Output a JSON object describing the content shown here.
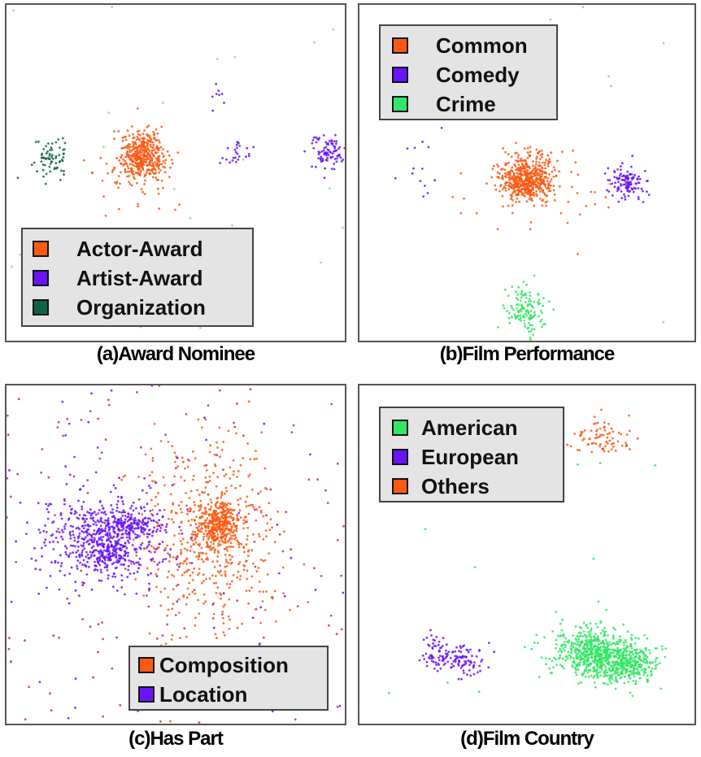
{
  "chart_data": [
    {
      "type": "scatter",
      "title": "(a)Award Nominee",
      "legend_position": "bottom-left",
      "series": [
        {
          "name": "Actor-Award",
          "color": "#fa5a14",
          "clusters": [
            {
              "cx": 0.4,
              "cy": 0.45,
              "sx": 0.035,
              "sy": 0.035,
              "n": 420
            },
            {
              "cx": 0.38,
              "cy": 0.52,
              "sx": 0.06,
              "sy": 0.05,
              "n": 50
            }
          ]
        },
        {
          "name": "Artist-Award",
          "color": "#6a14fa",
          "clusters": [
            {
              "cx": 0.95,
              "cy": 0.44,
              "sx": 0.025,
              "sy": 0.025,
              "n": 90
            },
            {
              "cx": 0.68,
              "cy": 0.44,
              "sx": 0.025,
              "sy": 0.02,
              "n": 25
            },
            {
              "cx": 0.64,
              "cy": 0.27,
              "sx": 0.02,
              "sy": 0.015,
              "n": 8
            }
          ]
        },
        {
          "name": "Organization",
          "color": "#0f6446",
          "clusters": [
            {
              "cx": 0.13,
              "cy": 0.46,
              "sx": 0.025,
              "sy": 0.025,
              "n": 70
            }
          ]
        }
      ],
      "noise": [
        {
          "color": "#7ee28a",
          "n": 25
        }
      ]
    },
    {
      "type": "scatter",
      "title": "(b)Film Performance",
      "legend_position": "top-left",
      "series": [
        {
          "name": "Common",
          "color": "#fa5a14",
          "clusters": [
            {
              "cx": 0.5,
              "cy": 0.52,
              "sx": 0.04,
              "sy": 0.035,
              "n": 520
            },
            {
              "cx": 0.55,
              "cy": 0.55,
              "sx": 0.12,
              "sy": 0.06,
              "n": 60
            }
          ]
        },
        {
          "name": "Comedy",
          "color": "#6a14fa",
          "clusters": [
            {
              "cx": 0.8,
              "cy": 0.53,
              "sx": 0.025,
              "sy": 0.025,
              "n": 120
            },
            {
              "cx": 0.17,
              "cy": 0.5,
              "sx": 0.03,
              "sy": 0.06,
              "n": 14
            }
          ]
        },
        {
          "name": "Crime",
          "color": "#32e664",
          "clusters": [
            {
              "cx": 0.5,
              "cy": 0.91,
              "sx": 0.03,
              "sy": 0.035,
              "n": 130
            }
          ]
        }
      ],
      "noise": [
        {
          "color": "#c8b478",
          "n": 8
        }
      ]
    },
    {
      "type": "scatter",
      "title": "(c)Has Part",
      "legend_position": "bottom-right",
      "series": [
        {
          "name": "Composition",
          "color": "#fa5a14",
          "clusters": [
            {
              "cx": 0.63,
              "cy": 0.41,
              "sx": 0.03,
              "sy": 0.03,
              "n": 320
            },
            {
              "cx": 0.6,
              "cy": 0.45,
              "sx": 0.1,
              "sy": 0.15,
              "n": 550
            }
          ]
        },
        {
          "name": "Location",
          "color": "#6a14fa",
          "clusters": [
            {
              "cx": 0.28,
              "cy": 0.45,
              "sx": 0.09,
              "sy": 0.07,
              "n": 520
            },
            {
              "cx": 0.36,
              "cy": 0.41,
              "sx": 0.04,
              "sy": 0.02,
              "n": 140
            },
            {
              "cx": 0.3,
              "cy": 0.5,
              "sx": 0.03,
              "sy": 0.02,
              "n": 110
            }
          ]
        }
      ],
      "noise": [
        {
          "color": "#c0305a",
          "n": 160
        },
        {
          "color": "#6a14fa",
          "n": 60
        }
      ]
    },
    {
      "type": "scatter",
      "title": "(d)Film Country",
      "legend_position": "top-left",
      "series": [
        {
          "name": "American",
          "color": "#32e664",
          "clusters": [
            {
              "cx": 0.69,
              "cy": 0.79,
              "sx": 0.05,
              "sy": 0.035,
              "n": 450
            },
            {
              "cx": 0.79,
              "cy": 0.82,
              "sx": 0.045,
              "sy": 0.03,
              "n": 380
            },
            {
              "cx": 0.72,
              "cy": 0.8,
              "sx": 0.1,
              "sy": 0.05,
              "n": 70
            }
          ]
        },
        {
          "name": "European",
          "color": "#6a14fa",
          "clusters": [
            {
              "cx": 0.23,
              "cy": 0.79,
              "sx": 0.02,
              "sy": 0.025,
              "n": 55
            },
            {
              "cx": 0.31,
              "cy": 0.81,
              "sx": 0.03,
              "sy": 0.025,
              "n": 90
            }
          ]
        },
        {
          "name": "Others",
          "color": "#fa5a14",
          "clusters": [
            {
              "cx": 0.73,
              "cy": 0.16,
              "sx": 0.05,
              "sy": 0.03,
              "n": 80
            }
          ]
        }
      ],
      "noise": [
        {
          "color": "#32e664",
          "n": 10
        }
      ]
    }
  ]
}
